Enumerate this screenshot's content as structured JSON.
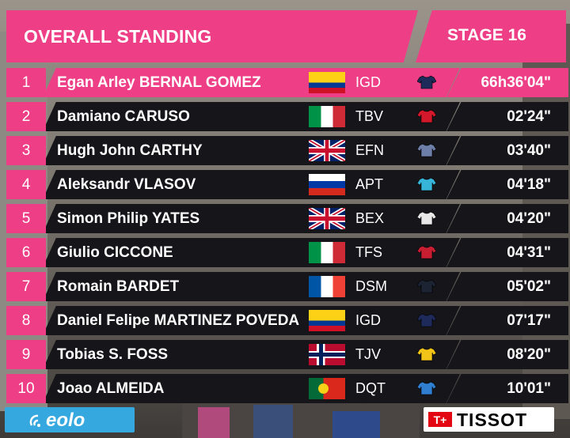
{
  "header": {
    "title": "OVERALL STANDING",
    "stage": "STAGE 16"
  },
  "standings": [
    {
      "rank": "1",
      "name": "Egan Arley BERNAL GOMEZ",
      "flag": "colombia-flag",
      "team": "IGD",
      "jersey_color": "#1e2a5a",
      "time": "66h36'04\"",
      "leader": true
    },
    {
      "rank": "2",
      "name": "Damiano CARUSO",
      "flag": "italy-flag",
      "team": "TBV",
      "jersey_color": "#d3182b",
      "time": "02'24\""
    },
    {
      "rank": "3",
      "name": "Hugh John CARTHY",
      "flag": "uk-flag",
      "team": "EFN",
      "jersey_color": "#6d7fa8",
      "time": "03'40\""
    },
    {
      "rank": "4",
      "name": "Aleksandr VLASOV",
      "flag": "russia-flag",
      "team": "APT",
      "jersey_color": "#37b5d8",
      "time": "04'18\""
    },
    {
      "rank": "5",
      "name": "Simon Philip YATES",
      "flag": "uk-flag",
      "team": "BEX",
      "jersey_color": "#e8e8e8",
      "time": "04'20\""
    },
    {
      "rank": "6",
      "name": "Giulio CICCONE",
      "flag": "italy-flag",
      "team": "TFS",
      "jersey_color": "#c81e32",
      "time": "04'31\""
    },
    {
      "rank": "7",
      "name": "Romain BARDET",
      "flag": "france-flag",
      "team": "DSM",
      "jersey_color": "#1c2434",
      "time": "05'02\""
    },
    {
      "rank": "8",
      "name": "Daniel Felipe MARTINEZ POVEDA",
      "flag": "colombia-flag",
      "team": "IGD",
      "jersey_color": "#1e2a5a",
      "time": "07'17\""
    },
    {
      "rank": "9",
      "name": "Tobias S. FOSS",
      "flag": "norway-flag",
      "team": "TJV",
      "jersey_color": "#f2c418",
      "time": "08'20\""
    },
    {
      "rank": "10",
      "name": "Joao ALMEIDA",
      "flag": "portugal-flag",
      "team": "DQT",
      "jersey_color": "#2f7ed0",
      "time": "10'01\""
    }
  ],
  "sponsors": {
    "left": "eolo",
    "right": "TISSOT"
  },
  "colors": {
    "accent": "#ee3f86",
    "row_bg": "#15151a"
  }
}
